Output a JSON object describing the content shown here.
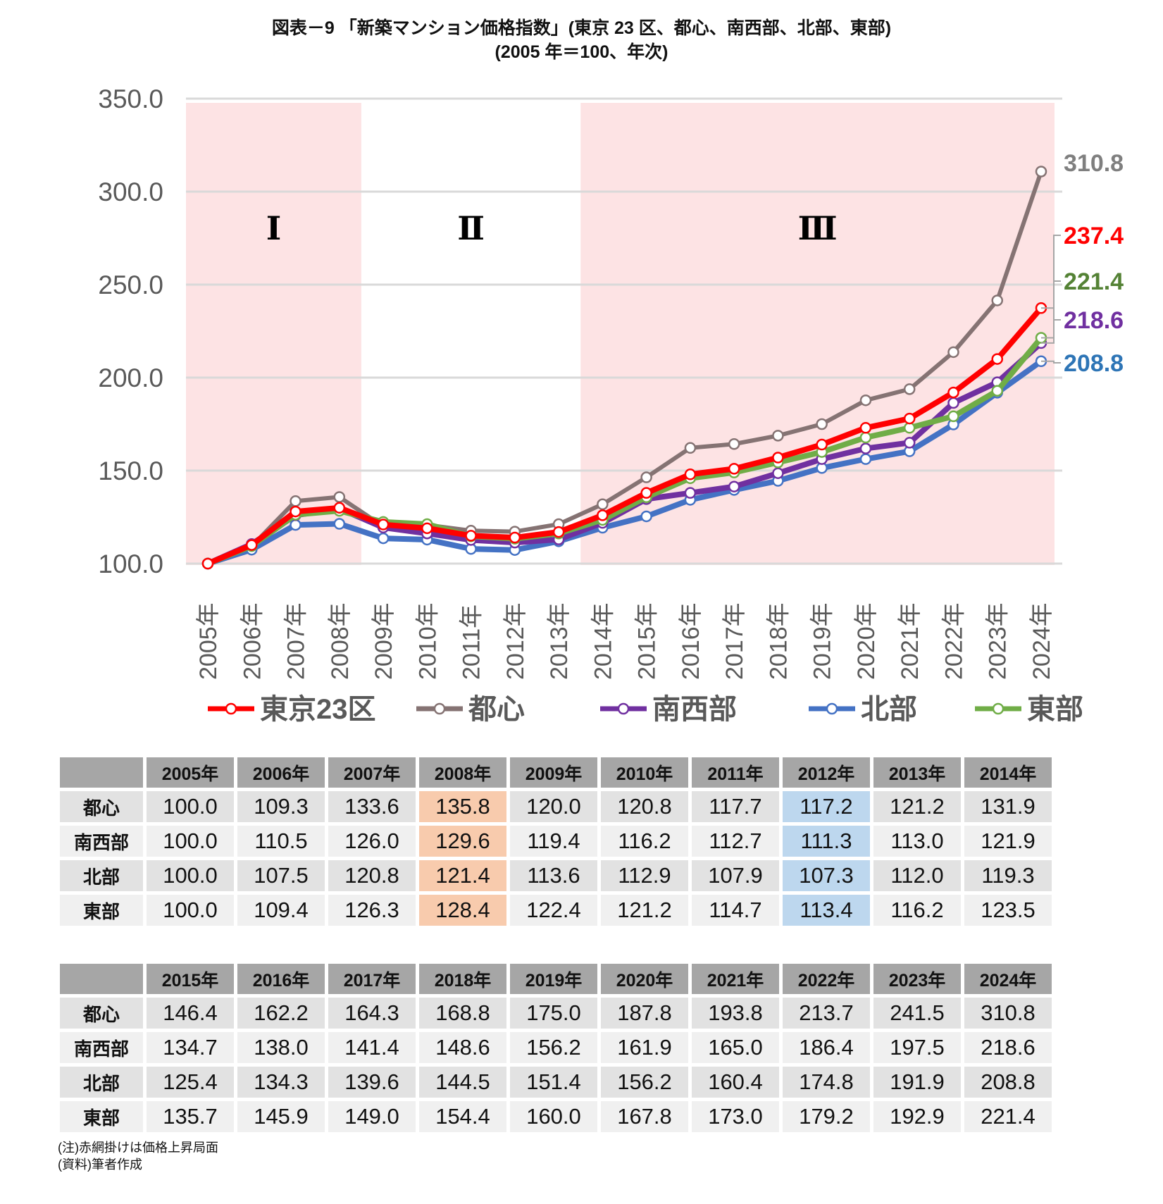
{
  "title_line1": "図表－9 「新築マンション価格指数」(東京 23 区、都心、南西部、北部、東部)",
  "title_line2": "(2005 年＝100、年次)",
  "chart_data": {
    "type": "line",
    "title": "図表－9 「新築マンション価格指数」(東京 23 区、都心、南西部、北部、東部) (2005 年＝100、年次)",
    "xlabel": "",
    "ylabel": "",
    "ylim": [
      100,
      350
    ],
    "yticks": [
      "100.0",
      "150.0",
      "200.0",
      "250.0",
      "300.0",
      "350.0"
    ],
    "grid": true,
    "legend_placement": "bottom",
    "categories": [
      "2005年",
      "2006年",
      "2007年",
      "2008年",
      "2009年",
      "2010年",
      "2011年",
      "2012年",
      "2013年",
      "2014年",
      "2015年",
      "2016年",
      "2017年",
      "2018年",
      "2019年",
      "2020年",
      "2021年",
      "2022年",
      "2023年",
      "2024年"
    ],
    "phases": [
      {
        "label": "Ⅰ",
        "from": "2005年",
        "to": "2008年",
        "shaded": true
      },
      {
        "label": "Ⅱ",
        "from": "2009年",
        "to": "2013年",
        "shaded": false
      },
      {
        "label": "Ⅲ",
        "from": "2014年",
        "to": "2024年",
        "shaded": true
      }
    ],
    "series": [
      {
        "name": "東京23区",
        "color": "#ff0000",
        "label_color": "#ff0000",
        "end_label": "237.4",
        "values": [
          100,
          110,
          128,
          130,
          121,
          119,
          115,
          114,
          117,
          126,
          138,
          148,
          151,
          157,
          164,
          173,
          178,
          192,
          210,
          237.4
        ]
      },
      {
        "name": "都心",
        "color": "#857373",
        "label_color": "#7f7f7f",
        "end_label": "310.8",
        "values": [
          100.0,
          109.3,
          133.6,
          135.8,
          120.0,
          120.8,
          117.7,
          117.2,
          121.2,
          131.9,
          146.4,
          162.2,
          164.3,
          168.8,
          175.0,
          187.8,
          193.8,
          213.7,
          241.5,
          310.8
        ]
      },
      {
        "name": "南西部",
        "color": "#7030a0",
        "label_color": "#7030a0",
        "end_label": "218.6",
        "values": [
          100.0,
          110.5,
          126.0,
          129.6,
          119.4,
          116.2,
          112.7,
          111.3,
          113.0,
          121.9,
          134.7,
          138.0,
          141.4,
          148.6,
          156.2,
          161.9,
          165.0,
          186.4,
          197.5,
          218.6
        ]
      },
      {
        "name": "北部",
        "color": "#4472c4",
        "label_color": "#2e75b6",
        "end_label": "208.8",
        "values": [
          100.0,
          107.5,
          120.8,
          121.4,
          113.6,
          112.9,
          107.9,
          107.3,
          112.0,
          119.3,
          125.4,
          134.3,
          139.6,
          144.5,
          151.4,
          156.2,
          160.4,
          174.8,
          191.9,
          208.8
        ]
      },
      {
        "name": "東部",
        "color": "#70ad47",
        "label_color": "#548235",
        "end_label": "221.4",
        "values": [
          100.0,
          109.4,
          126.3,
          128.4,
          122.4,
          121.2,
          114.7,
          113.4,
          116.2,
          123.5,
          135.7,
          145.9,
          149.0,
          154.4,
          160.0,
          167.8,
          173.0,
          179.2,
          192.9,
          221.4
        ]
      }
    ]
  },
  "table1": {
    "headers": [
      "2005年",
      "2006年",
      "2007年",
      "2008年",
      "2009年",
      "2010年",
      "2011年",
      "2012年",
      "2013年",
      "2014年"
    ],
    "rows": [
      {
        "label": "都心",
        "values": [
          "100.0",
          "109.3",
          "133.6",
          "135.8",
          "120.0",
          "120.8",
          "117.7",
          "117.2",
          "121.2",
          "131.9"
        ]
      },
      {
        "label": "南西部",
        "values": [
          "100.0",
          "110.5",
          "126.0",
          "129.6",
          "119.4",
          "116.2",
          "112.7",
          "111.3",
          "113.0",
          "121.9"
        ]
      },
      {
        "label": "北部",
        "values": [
          "100.0",
          "107.5",
          "120.8",
          "121.4",
          "113.6",
          "112.9",
          "107.9",
          "107.3",
          "112.0",
          "119.3"
        ]
      },
      {
        "label": "東部",
        "values": [
          "100.0",
          "109.4",
          "126.3",
          "128.4",
          "122.4",
          "121.2",
          "114.7",
          "113.4",
          "116.2",
          "123.5"
        ]
      }
    ],
    "highlight_peak_color": "#f8cbad",
    "highlight_trough_color": "#bdd7ee"
  },
  "table2": {
    "headers": [
      "2015年",
      "2016年",
      "2017年",
      "2018年",
      "2019年",
      "2020年",
      "2021年",
      "2022年",
      "2023年",
      "2024年"
    ],
    "rows": [
      {
        "label": "都心",
        "values": [
          "146.4",
          "162.2",
          "164.3",
          "168.8",
          "175.0",
          "187.8",
          "193.8",
          "213.7",
          "241.5",
          "310.8"
        ]
      },
      {
        "label": "南西部",
        "values": [
          "134.7",
          "138.0",
          "141.4",
          "148.6",
          "156.2",
          "161.9",
          "165.0",
          "186.4",
          "197.5",
          "218.6"
        ]
      },
      {
        "label": "北部",
        "values": [
          "125.4",
          "134.3",
          "139.6",
          "144.5",
          "151.4",
          "156.2",
          "160.4",
          "174.8",
          "191.9",
          "208.8"
        ]
      },
      {
        "label": "東部",
        "values": [
          "135.7",
          "145.9",
          "149.0",
          "154.4",
          "160.0",
          "167.8",
          "173.0",
          "179.2",
          "192.9",
          "221.4"
        ]
      }
    ]
  },
  "notes": {
    "note": "(注)赤網掛けは価格上昇局面",
    "source": "(資料)筆者作成"
  }
}
